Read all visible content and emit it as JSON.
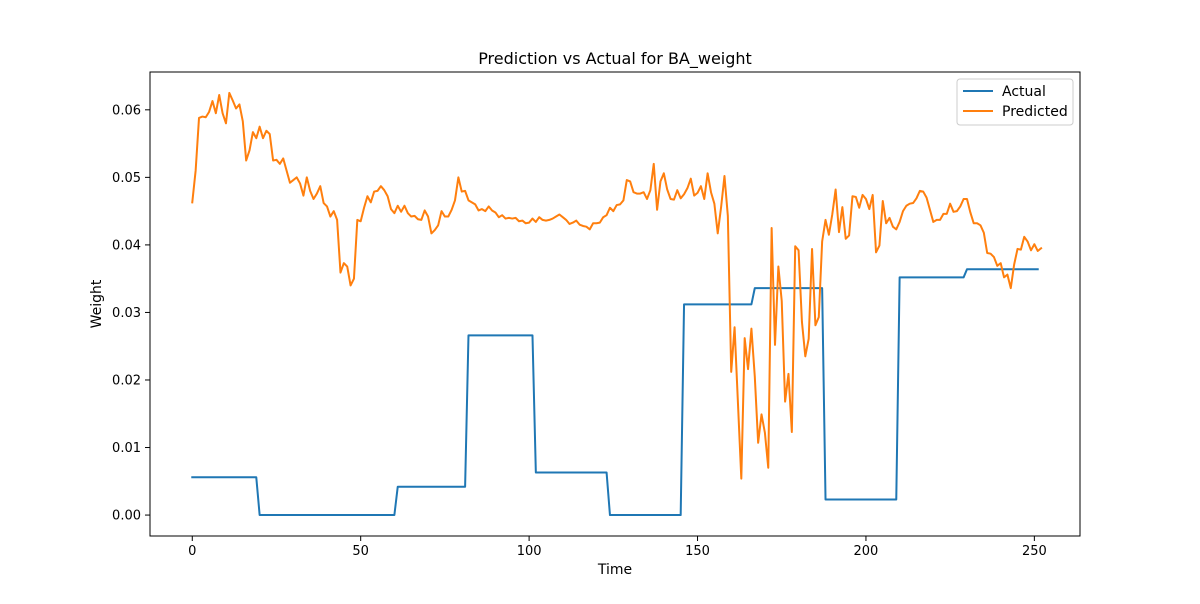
{
  "chart_data": {
    "type": "line",
    "title": "Prediction vs Actual for BA_weight",
    "xlabel": "Time",
    "ylabel": "Weight",
    "xlim": [
      -12.55,
      263.55
    ],
    "ylim": [
      -0.0031,
      0.0656
    ],
    "x_ticks": [
      0,
      50,
      100,
      150,
      200,
      250
    ],
    "x_tick_labels": [
      "0",
      "50",
      "100",
      "150",
      "200",
      "250"
    ],
    "y_ticks": [
      0.0,
      0.01,
      0.02,
      0.03,
      0.04,
      0.05,
      0.06
    ],
    "y_tick_labels": [
      "0.00",
      "0.01",
      "0.02",
      "0.03",
      "0.04",
      "0.05",
      "0.06"
    ],
    "grid": false,
    "legend_position": "top-right",
    "series": [
      {
        "name": "Actual",
        "color": "#1f77b4",
        "points": [
          [
            0,
            0.0056
          ],
          [
            19,
            0.0056
          ],
          [
            20,
            0.0
          ],
          [
            60,
            0.0
          ],
          [
            61,
            0.0042
          ],
          [
            81,
            0.0042
          ],
          [
            82,
            0.0266
          ],
          [
            101,
            0.0266
          ],
          [
            102,
            0.0063
          ],
          [
            123,
            0.0063
          ],
          [
            124,
            0.0
          ],
          [
            145,
            0.0
          ],
          [
            146,
            0.0312
          ],
          [
            166,
            0.0312
          ],
          [
            167,
            0.0336
          ],
          [
            187,
            0.0336
          ],
          [
            188,
            0.0023
          ],
          [
            209,
            0.0023
          ],
          [
            210,
            0.0352
          ],
          [
            229,
            0.0352
          ],
          [
            230,
            0.0364
          ],
          [
            251,
            0.0364
          ]
        ]
      },
      {
        "name": "Predicted",
        "color": "#ff7f0e",
        "points": [
          [
            0,
            0.0463
          ],
          [
            1,
            0.051
          ],
          [
            2,
            0.0588
          ],
          [
            3,
            0.059
          ],
          [
            4,
            0.0589
          ],
          [
            5,
            0.0597
          ],
          [
            6,
            0.0613
          ],
          [
            7,
            0.0595
          ],
          [
            8,
            0.0622
          ],
          [
            9,
            0.0595
          ],
          [
            10,
            0.058
          ],
          [
            11,
            0.0625
          ],
          [
            12,
            0.0614
          ],
          [
            13,
            0.0602
          ],
          [
            14,
            0.0608
          ],
          [
            15,
            0.0583
          ],
          [
            16,
            0.0525
          ],
          [
            17,
            0.054
          ],
          [
            18,
            0.0567
          ],
          [
            19,
            0.0558
          ],
          [
            20,
            0.0575
          ],
          [
            21,
            0.0558
          ],
          [
            22,
            0.0569
          ],
          [
            23,
            0.0564
          ],
          [
            24,
            0.0525
          ],
          [
            25,
            0.0526
          ],
          [
            26,
            0.052
          ],
          [
            27,
            0.0528
          ],
          [
            28,
            0.051
          ],
          [
            29,
            0.0492
          ],
          [
            30,
            0.0496
          ],
          [
            31,
            0.05
          ],
          [
            32,
            0.0491
          ],
          [
            33,
            0.0473
          ],
          [
            34,
            0.05
          ],
          [
            35,
            0.048
          ],
          [
            36,
            0.0468
          ],
          [
            37,
            0.0476
          ],
          [
            38,
            0.0487
          ],
          [
            39,
            0.0462
          ],
          [
            40,
            0.0457
          ],
          [
            41,
            0.0442
          ],
          [
            42,
            0.045
          ],
          [
            43,
            0.0437
          ],
          [
            44,
            0.0359
          ],
          [
            45,
            0.0373
          ],
          [
            46,
            0.0368
          ],
          [
            47,
            0.034
          ],
          [
            48,
            0.035
          ],
          [
            49,
            0.0437
          ],
          [
            50,
            0.0435
          ],
          [
            51,
            0.0455
          ],
          [
            52,
            0.0472
          ],
          [
            53,
            0.0463
          ],
          [
            54,
            0.0479
          ],
          [
            55,
            0.048
          ],
          [
            56,
            0.0487
          ],
          [
            57,
            0.0481
          ],
          [
            58,
            0.0472
          ],
          [
            59,
            0.0453
          ],
          [
            60,
            0.0447
          ],
          [
            61,
            0.0458
          ],
          [
            62,
            0.0449
          ],
          [
            63,
            0.0458
          ],
          [
            64,
            0.0447
          ],
          [
            65,
            0.0442
          ],
          [
            66,
            0.0443
          ],
          [
            67,
            0.0438
          ],
          [
            68,
            0.0437
          ],
          [
            69,
            0.0451
          ],
          [
            70,
            0.0442
          ],
          [
            71,
            0.0417
          ],
          [
            72,
            0.0422
          ],
          [
            73,
            0.0429
          ],
          [
            74,
            0.045
          ],
          [
            75,
            0.0442
          ],
          [
            76,
            0.0442
          ],
          [
            77,
            0.0452
          ],
          [
            78,
            0.0466
          ],
          [
            79,
            0.05
          ],
          [
            80,
            0.0479
          ],
          [
            81,
            0.048
          ],
          [
            82,
            0.0466
          ],
          [
            83,
            0.0463
          ],
          [
            84,
            0.046
          ],
          [
            85,
            0.0451
          ],
          [
            86,
            0.0453
          ],
          [
            87,
            0.045
          ],
          [
            88,
            0.0457
          ],
          [
            89,
            0.0451
          ],
          [
            90,
            0.0448
          ],
          [
            91,
            0.0441
          ],
          [
            92,
            0.0444
          ],
          [
            93,
            0.0439
          ],
          [
            94,
            0.044
          ],
          [
            95,
            0.0439
          ],
          [
            96,
            0.044
          ],
          [
            97,
            0.0435
          ],
          [
            98,
            0.0436
          ],
          [
            99,
            0.0432
          ],
          [
            100,
            0.0433
          ],
          [
            101,
            0.0439
          ],
          [
            102,
            0.0434
          ],
          [
            103,
            0.0441
          ],
          [
            104,
            0.0437
          ],
          [
            105,
            0.0436
          ],
          [
            106,
            0.0437
          ],
          [
            107,
            0.0439
          ],
          [
            108,
            0.0442
          ],
          [
            109,
            0.0445
          ],
          [
            110,
            0.0441
          ],
          [
            111,
            0.0437
          ],
          [
            112,
            0.0431
          ],
          [
            113,
            0.0433
          ],
          [
            114,
            0.0436
          ],
          [
            115,
            0.043
          ],
          [
            116,
            0.0428
          ],
          [
            117,
            0.0427
          ],
          [
            118,
            0.0423
          ],
          [
            119,
            0.0432
          ],
          [
            120,
            0.0432
          ],
          [
            121,
            0.0433
          ],
          [
            122,
            0.0441
          ],
          [
            123,
            0.0444
          ],
          [
            124,
            0.0455
          ],
          [
            125,
            0.045
          ],
          [
            126,
            0.0459
          ],
          [
            127,
            0.046
          ],
          [
            128,
            0.0466
          ],
          [
            129,
            0.0496
          ],
          [
            130,
            0.0494
          ],
          [
            131,
            0.0478
          ],
          [
            132,
            0.0476
          ],
          [
            133,
            0.0476
          ],
          [
            134,
            0.0478
          ],
          [
            135,
            0.0468
          ],
          [
            136,
            0.0481
          ],
          [
            137,
            0.052
          ],
          [
            138,
            0.0452
          ],
          [
            139,
            0.0494
          ],
          [
            140,
            0.0506
          ],
          [
            141,
            0.0482
          ],
          [
            142,
            0.0468
          ],
          [
            143,
            0.0467
          ],
          [
            144,
            0.0481
          ],
          [
            145,
            0.0469
          ],
          [
            146,
            0.0475
          ],
          [
            147,
            0.0484
          ],
          [
            148,
            0.0498
          ],
          [
            149,
            0.0473
          ],
          [
            150,
            0.0477
          ],
          [
            151,
            0.0487
          ],
          [
            152,
            0.0468
          ],
          [
            153,
            0.0506
          ],
          [
            154,
            0.0478
          ],
          [
            155,
            0.0461
          ],
          [
            156,
            0.0417
          ],
          [
            157,
            0.0456
          ],
          [
            158,
            0.0502
          ],
          [
            159,
            0.0443
          ],
          [
            160,
            0.0212
          ],
          [
            161,
            0.0278
          ],
          [
            162,
            0.0166
          ],
          [
            163,
            0.0054
          ],
          [
            164,
            0.0262
          ],
          [
            165,
            0.0216
          ],
          [
            166,
            0.0276
          ],
          [
            167,
            0.0205
          ],
          [
            168,
            0.0107
          ],
          [
            169,
            0.0149
          ],
          [
            170,
            0.0122
          ],
          [
            171,
            0.007
          ],
          [
            172,
            0.0425
          ],
          [
            173,
            0.0252
          ],
          [
            174,
            0.0368
          ],
          [
            175,
            0.0317
          ],
          [
            176,
            0.0168
          ],
          [
            177,
            0.0209
          ],
          [
            178,
            0.0123
          ],
          [
            179,
            0.0398
          ],
          [
            180,
            0.0392
          ],
          [
            181,
            0.0286
          ],
          [
            182,
            0.0235
          ],
          [
            183,
            0.0261
          ],
          [
            184,
            0.0394
          ],
          [
            185,
            0.0281
          ],
          [
            186,
            0.0293
          ],
          [
            187,
            0.0405
          ],
          [
            188,
            0.0437
          ],
          [
            189,
            0.0415
          ],
          [
            190,
            0.0445
          ],
          [
            191,
            0.0482
          ],
          [
            192,
            0.0419
          ],
          [
            193,
            0.0456
          ],
          [
            194,
            0.0409
          ],
          [
            195,
            0.0414
          ],
          [
            196,
            0.0472
          ],
          [
            197,
            0.0471
          ],
          [
            198,
            0.0455
          ],
          [
            199,
            0.0474
          ],
          [
            200,
            0.0468
          ],
          [
            201,
            0.0453
          ],
          [
            202,
            0.0474
          ],
          [
            203,
            0.0389
          ],
          [
            204,
            0.0399
          ],
          [
            205,
            0.0465
          ],
          [
            206,
            0.0432
          ],
          [
            207,
            0.044
          ],
          [
            208,
            0.0427
          ],
          [
            209,
            0.0423
          ],
          [
            210,
            0.0434
          ],
          [
            211,
            0.045
          ],
          [
            212,
            0.0458
          ],
          [
            213,
            0.0461
          ],
          [
            214,
            0.0462
          ],
          [
            215,
            0.0469
          ],
          [
            216,
            0.048
          ],
          [
            217,
            0.0479
          ],
          [
            218,
            0.047
          ],
          [
            219,
            0.0452
          ],
          [
            220,
            0.0434
          ],
          [
            221,
            0.0437
          ],
          [
            222,
            0.0437
          ],
          [
            223,
            0.0446
          ],
          [
            224,
            0.0446
          ],
          [
            225,
            0.0461
          ],
          [
            226,
            0.0449
          ],
          [
            227,
            0.045
          ],
          [
            228,
            0.0457
          ],
          [
            229,
            0.0468
          ],
          [
            230,
            0.0468
          ],
          [
            231,
            0.0448
          ],
          [
            232,
            0.0432
          ],
          [
            233,
            0.0432
          ],
          [
            234,
            0.0429
          ],
          [
            235,
            0.0418
          ],
          [
            236,
            0.0388
          ],
          [
            237,
            0.0387
          ],
          [
            238,
            0.0382
          ],
          [
            239,
            0.0369
          ],
          [
            240,
            0.0373
          ],
          [
            241,
            0.0352
          ],
          [
            242,
            0.0356
          ],
          [
            243,
            0.0336
          ],
          [
            244,
            0.0371
          ],
          [
            245,
            0.0394
          ],
          [
            246,
            0.0393
          ],
          [
            247,
            0.0412
          ],
          [
            248,
            0.0405
          ],
          [
            249,
            0.0392
          ],
          [
            250,
            0.0401
          ],
          [
            251,
            0.0391
          ],
          [
            252,
            0.0395
          ]
        ]
      }
    ]
  }
}
